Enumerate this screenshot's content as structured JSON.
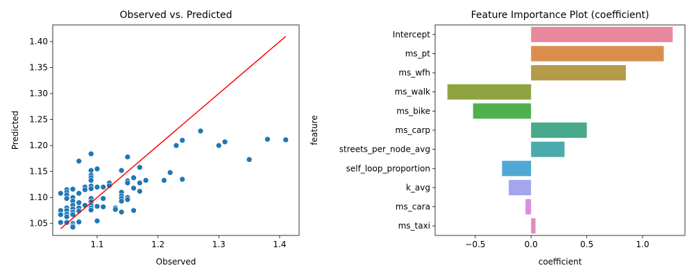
{
  "chart_data": [
    {
      "type": "scatter",
      "title": "Observed vs. Predicted",
      "xlabel": "Observed",
      "ylabel": "Predicted",
      "xlim": [
        1.027,
        1.432
      ],
      "ylim": [
        1.027,
        1.432
      ],
      "xticks": [
        1.1,
        1.2,
        1.3,
        1.4
      ],
      "yticks": [
        1.05,
        1.1,
        1.15,
        1.2,
        1.25,
        1.3,
        1.35,
        1.4
      ],
      "xtick_labels": [
        "1.1",
        "1.2",
        "1.3",
        "1.4"
      ],
      "ytick_labels": [
        "1.05",
        "1.10",
        "1.15",
        "1.20",
        "1.25",
        "1.30",
        "1.35",
        "1.40"
      ],
      "grid": false,
      "point_color": "#1f77b4",
      "line_color": "#ff0000",
      "reference_line": {
        "x": [
          1.04,
          1.41
        ],
        "y": [
          1.04,
          1.41
        ]
      },
      "points": [
        {
          "x": 1.04,
          "y": 1.108
        },
        {
          "x": 1.04,
          "y": 1.075
        },
        {
          "x": 1.04,
          "y": 1.067
        },
        {
          "x": 1.04,
          "y": 1.052
        },
        {
          "x": 1.05,
          "y": 1.115
        },
        {
          "x": 1.05,
          "y": 1.11
        },
        {
          "x": 1.05,
          "y": 1.105
        },
        {
          "x": 1.05,
          "y": 1.098
        },
        {
          "x": 1.05,
          "y": 1.08
        },
        {
          "x": 1.05,
          "y": 1.075
        },
        {
          "x": 1.05,
          "y": 1.068
        },
        {
          "x": 1.05,
          "y": 1.063
        },
        {
          "x": 1.05,
          "y": 1.052
        },
        {
          "x": 1.06,
          "y": 1.116
        },
        {
          "x": 1.06,
          "y": 1.1
        },
        {
          "x": 1.06,
          "y": 1.093
        },
        {
          "x": 1.06,
          "y": 1.085
        },
        {
          "x": 1.06,
          "y": 1.078
        },
        {
          "x": 1.06,
          "y": 1.072
        },
        {
          "x": 1.06,
          "y": 1.067
        },
        {
          "x": 1.06,
          "y": 1.05
        },
        {
          "x": 1.06,
          "y": 1.046
        },
        {
          "x": 1.06,
          "y": 1.043
        },
        {
          "x": 1.07,
          "y": 1.17
        },
        {
          "x": 1.07,
          "y": 1.108
        },
        {
          "x": 1.07,
          "y": 1.09
        },
        {
          "x": 1.07,
          "y": 1.08
        },
        {
          "x": 1.07,
          "y": 1.074
        },
        {
          "x": 1.07,
          "y": 1.053
        },
        {
          "x": 1.08,
          "y": 1.12
        },
        {
          "x": 1.08,
          "y": 1.115
        },
        {
          "x": 1.08,
          "y": 1.085
        },
        {
          "x": 1.09,
          "y": 1.184
        },
        {
          "x": 1.09,
          "y": 1.152
        },
        {
          "x": 1.09,
          "y": 1.143
        },
        {
          "x": 1.09,
          "y": 1.138
        },
        {
          "x": 1.09,
          "y": 1.133
        },
        {
          "x": 1.09,
          "y": 1.122
        },
        {
          "x": 1.09,
          "y": 1.117
        },
        {
          "x": 1.09,
          "y": 1.098
        },
        {
          "x": 1.09,
          "y": 1.092
        },
        {
          "x": 1.09,
          "y": 1.085
        },
        {
          "x": 1.09,
          "y": 1.08
        },
        {
          "x": 1.09,
          "y": 1.076
        },
        {
          "x": 1.1,
          "y": 1.155
        },
        {
          "x": 1.1,
          "y": 1.12
        },
        {
          "x": 1.1,
          "y": 1.083
        },
        {
          "x": 1.1,
          "y": 1.055
        },
        {
          "x": 1.11,
          "y": 1.12
        },
        {
          "x": 1.11,
          "y": 1.098
        },
        {
          "x": 1.11,
          "y": 1.082
        },
        {
          "x": 1.12,
          "y": 1.128
        },
        {
          "x": 1.12,
          "y": 1.123
        },
        {
          "x": 1.13,
          "y": 1.08
        },
        {
          "x": 1.13,
          "y": 1.077
        },
        {
          "x": 1.14,
          "y": 1.152
        },
        {
          "x": 1.14,
          "y": 1.11
        },
        {
          "x": 1.14,
          "y": 1.103
        },
        {
          "x": 1.14,
          "y": 1.098
        },
        {
          "x": 1.14,
          "y": 1.093
        },
        {
          "x": 1.14,
          "y": 1.072
        },
        {
          "x": 1.15,
          "y": 1.178
        },
        {
          "x": 1.15,
          "y": 1.132
        },
        {
          "x": 1.15,
          "y": 1.128
        },
        {
          "x": 1.15,
          "y": 1.1
        },
        {
          "x": 1.15,
          "y": 1.096
        },
        {
          "x": 1.16,
          "y": 1.138
        },
        {
          "x": 1.16,
          "y": 1.118
        },
        {
          "x": 1.16,
          "y": 1.075
        },
        {
          "x": 1.17,
          "y": 1.158
        },
        {
          "x": 1.17,
          "y": 1.128
        },
        {
          "x": 1.17,
          "y": 1.112
        },
        {
          "x": 1.18,
          "y": 1.133
        },
        {
          "x": 1.21,
          "y": 1.133
        },
        {
          "x": 1.22,
          "y": 1.148
        },
        {
          "x": 1.23,
          "y": 1.2
        },
        {
          "x": 1.24,
          "y": 1.21
        },
        {
          "x": 1.24,
          "y": 1.135
        },
        {
          "x": 1.27,
          "y": 1.228
        },
        {
          "x": 1.3,
          "y": 1.2
        },
        {
          "x": 1.31,
          "y": 1.207
        },
        {
          "x": 1.35,
          "y": 1.173
        },
        {
          "x": 1.38,
          "y": 1.212
        },
        {
          "x": 1.41,
          "y": 1.211
        }
      ]
    },
    {
      "type": "bar",
      "orientation": "horizontal",
      "title": "Feature Importance Plot (coefficient)",
      "xlabel": "coefficient",
      "ylabel": "feature",
      "xlim": [
        -0.86,
        1.38
      ],
      "xticks": [
        -0.5,
        0.0,
        0.5,
        1.0
      ],
      "xtick_labels": [
        "−0.5",
        "0.0",
        "0.5",
        "1.0"
      ],
      "grid": false,
      "categories": [
        "Intercept",
        "ms_pt",
        "ms_wfh",
        "ms_walk",
        "ms_bike",
        "ms_carp",
        "streets_per_node_avg",
        "self_loop_proportion",
        "k_avg",
        "ms_cara",
        "ms_taxi"
      ],
      "values": [
        1.27,
        1.19,
        0.85,
        -0.75,
        -0.52,
        0.5,
        0.3,
        -0.26,
        -0.2,
        -0.05,
        0.04
      ],
      "colors": [
        "#e8889c",
        "#db8e4c",
        "#b59b49",
        "#8ea33f",
        "#4fb04e",
        "#47a98b",
        "#49abab",
        "#50a8d4",
        "#a3a6ec",
        "#d88fe0",
        "#e38ac6"
      ]
    }
  ]
}
